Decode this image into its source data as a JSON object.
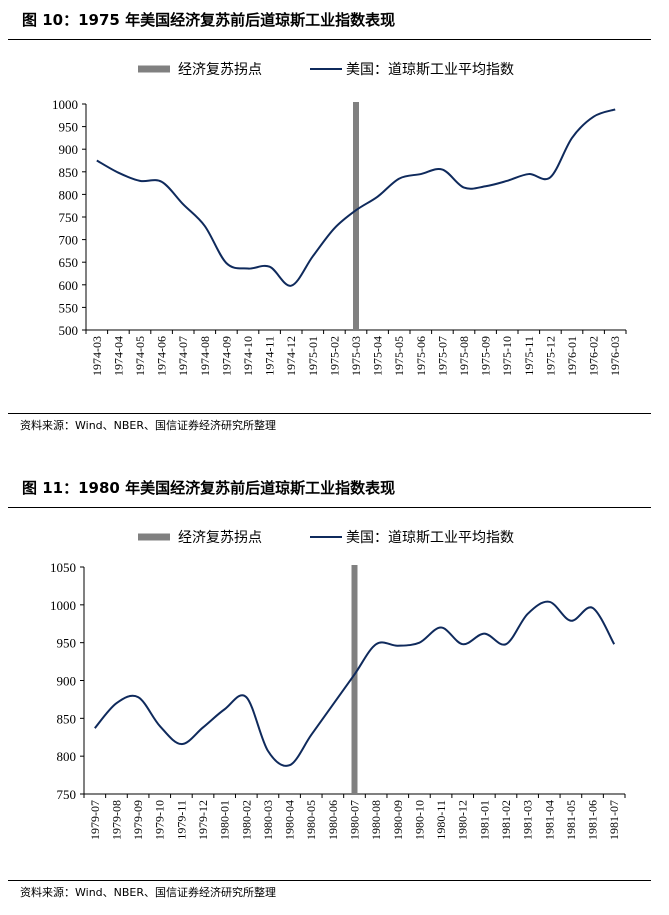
{
  "figures": [
    {
      "title": "图 10：1975 年美国经济复苏前后道琼斯工业指数表现",
      "source": "资料来源：Wind、NBER、国信证券经济研究所整理",
      "chart_data": {
        "type": "line",
        "legend": [
          "经济复苏拐点",
          "美国：道琼斯工业平均指数"
        ],
        "legend_position": "top-center",
        "grid": false,
        "categories": [
          "1974-03",
          "1974-04",
          "1974-05",
          "1974-06",
          "1974-07",
          "1974-08",
          "1974-09",
          "1974-10",
          "1974-11",
          "1974-12",
          "1975-01",
          "1975-02",
          "1975-03",
          "1975-04",
          "1975-05",
          "1975-06",
          "1975-07",
          "1975-08",
          "1975-09",
          "1975-10",
          "1975-11",
          "1975-12",
          "1976-01",
          "1976-02",
          "1976-03"
        ],
        "series": [
          {
            "name": "美国：道琼斯工业平均指数",
            "color": "#0f2a5c",
            "values": [
              875,
              848,
              830,
              828,
              778,
              730,
              648,
              636,
              640,
              598,
              663,
              725,
              765,
              795,
              835,
              845,
              855,
              815,
              818,
              830,
              845,
              838,
              925,
              972,
              988
            ]
          }
        ],
        "marker": {
          "name": "经济复苏拐点",
          "category": "1975-03",
          "color": "#808080"
        },
        "yticks": [
          500,
          550,
          600,
          650,
          700,
          750,
          800,
          850,
          900,
          950,
          1000
        ],
        "ylim": [
          500,
          1000
        ]
      }
    },
    {
      "title": "图 11：1980 年美国经济复苏前后道琼斯工业指数表现",
      "source": "资料来源：Wind、NBER、国信证券经济研究所整理",
      "chart_data": {
        "type": "line",
        "legend": [
          "经济复苏拐点",
          "美国：道琼斯工业平均指数"
        ],
        "legend_position": "top-center",
        "grid": false,
        "categories": [
          "1979-07",
          "1979-08",
          "1979-09",
          "1979-10",
          "1979-11",
          "1979-12",
          "1980-01",
          "1980-02",
          "1980-03",
          "1980-04",
          "1980-05",
          "1980-06",
          "1980-07",
          "1980-08",
          "1980-09",
          "1980-10",
          "1980-11",
          "1980-12",
          "1981-01",
          "1981-02",
          "1981-03",
          "1981-04",
          "1981-05",
          "1981-06",
          "1981-07"
        ],
        "series": [
          {
            "name": "美国：道琼斯工业平均指数",
            "color": "#0f2a5c",
            "values": [
              837,
              870,
              878,
              840,
              816,
              838,
              862,
              878,
              807,
              788,
              828,
              868,
              908,
              948,
              946,
              950,
              970,
              948,
              962,
              948,
              988,
              1004,
              979,
              996,
              948
            ]
          }
        ],
        "marker": {
          "name": "经济复苏拐点",
          "category": "1980-07",
          "color": "#808080"
        },
        "yticks": [
          750,
          800,
          850,
          900,
          950,
          1000,
          1050
        ],
        "ylim": [
          750,
          1050
        ]
      }
    }
  ]
}
